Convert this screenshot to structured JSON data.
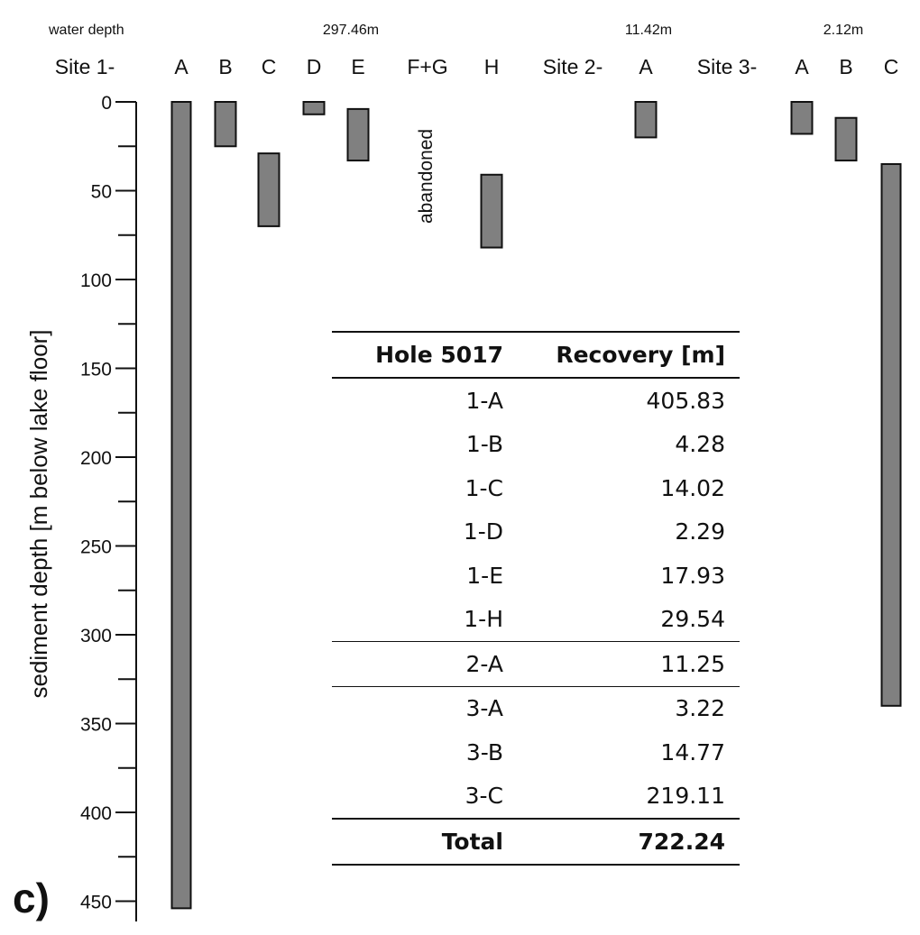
{
  "panel_label": "c)",
  "chart_data": {
    "type": "bar",
    "title": "",
    "ylabel": "sediment depth [m below lake floor]",
    "ylim": [
      0,
      460
    ],
    "y_inverted": true,
    "y_ticks": [
      0,
      50,
      100,
      150,
      200,
      250,
      300,
      350,
      400,
      450
    ],
    "water_depth_label": "water depth",
    "sites": [
      {
        "label": "Site 1-",
        "water_depth": "297.46m"
      },
      {
        "label": "Site 2-",
        "water_depth": "11.42m"
      },
      {
        "label": "Site 3-",
        "water_depth": "2.12m"
      }
    ],
    "holes": [
      {
        "site": "Site 1-",
        "label": "A",
        "top": 0,
        "bottom": 454
      },
      {
        "site": "Site 1-",
        "label": "B",
        "top": 0,
        "bottom": 25
      },
      {
        "site": "Site 1-",
        "label": "C",
        "top": 29,
        "bottom": 70
      },
      {
        "site": "Site 1-",
        "label": "D",
        "top": 0,
        "bottom": 7
      },
      {
        "site": "Site 1-",
        "label": "E",
        "top": 4,
        "bottom": 33
      },
      {
        "site": "Site 1-",
        "label": "F+G",
        "top": null,
        "bottom": null,
        "note": "abandoned"
      },
      {
        "site": "Site 1-",
        "label": "H",
        "top": 41,
        "bottom": 82
      },
      {
        "site": "Site 2-",
        "label": "A",
        "top": 0,
        "bottom": 20
      },
      {
        "site": "Site 3-",
        "label": "A",
        "top": 0,
        "bottom": 18
      },
      {
        "site": "Site 3-",
        "label": "B",
        "top": 9,
        "bottom": 33
      },
      {
        "site": "Site 3-",
        "label": "C",
        "top": 35,
        "bottom": 340
      }
    ],
    "bar_color": "#808080"
  },
  "table": {
    "headers": [
      "Hole 5017",
      "Recovery [m]"
    ],
    "rows": [
      {
        "hole": "1-A",
        "recovery": "405.83"
      },
      {
        "hole": "1-B",
        "recovery": "4.28"
      },
      {
        "hole": "1-C",
        "recovery": "14.02"
      },
      {
        "hole": "1-D",
        "recovery": "2.29"
      },
      {
        "hole": "1-E",
        "recovery": "17.93"
      },
      {
        "hole": "1-H",
        "recovery": "29.54"
      },
      {
        "hole": "2-A",
        "recovery": "11.25"
      },
      {
        "hole": "3-A",
        "recovery": "3.22"
      },
      {
        "hole": "3-B",
        "recovery": "14.77"
      },
      {
        "hole": "3-C",
        "recovery": "219.11"
      }
    ],
    "total": {
      "label": "Total",
      "value": "722.24"
    }
  }
}
